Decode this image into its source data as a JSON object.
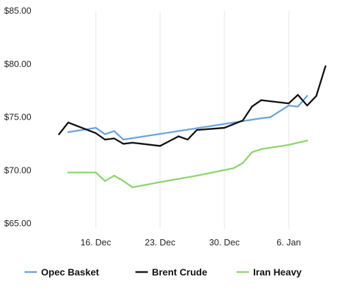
{
  "chart_data": {
    "type": "line",
    "title": "",
    "xlabel": "",
    "ylabel": "",
    "ylim": [
      65,
      85
    ],
    "y_ticks": [
      {
        "value": 85,
        "label": "$85.00"
      },
      {
        "value": 80,
        "label": "$80.00"
      },
      {
        "value": 75,
        "label": "$75.00"
      },
      {
        "value": 70,
        "label": "$70.00"
      },
      {
        "value": 65,
        "label": "$65.00"
      }
    ],
    "x_ticks": [
      {
        "date": "2019-12-16",
        "label": "16. Dec"
      },
      {
        "date": "2019-12-23",
        "label": "23. Dec"
      },
      {
        "date": "2019-12-30",
        "label": "30. Dec"
      },
      {
        "date": "2020-01-06",
        "label": "6. Jan"
      }
    ],
    "xlim": [
      "2019-12-12",
      "2020-01-10"
    ],
    "grid": {
      "vertical": true,
      "horizontal": false
    },
    "legend_position": "bottom",
    "series": [
      {
        "name": "Opec Basket",
        "color": "#6ba3dd",
        "points": [
          {
            "x": "2019-12-13",
            "y": 73.6
          },
          {
            "x": "2019-12-16",
            "y": 74.0
          },
          {
            "x": "2019-12-17",
            "y": 73.4
          },
          {
            "x": "2019-12-18",
            "y": 73.7
          },
          {
            "x": "2019-12-19",
            "y": 72.9
          },
          {
            "x": "2020-01-03",
            "y": 74.9
          },
          {
            "x": "2020-01-04",
            "y": 75.0
          },
          {
            "x": "2020-01-06",
            "y": 76.1
          },
          {
            "x": "2020-01-07",
            "y": 76.0
          },
          {
            "x": "2020-01-08",
            "y": 77.0
          }
        ]
      },
      {
        "name": "Brent Crude",
        "color": "#111111",
        "points": [
          {
            "x": "2019-12-12",
            "y": 73.4
          },
          {
            "x": "2019-12-13",
            "y": 74.5
          },
          {
            "x": "2019-12-16",
            "y": 73.5
          },
          {
            "x": "2019-12-17",
            "y": 72.9
          },
          {
            "x": "2019-12-18",
            "y": 73.0
          },
          {
            "x": "2019-12-19",
            "y": 72.5
          },
          {
            "x": "2019-12-20",
            "y": 72.6
          },
          {
            "x": "2019-12-23",
            "y": 72.3
          },
          {
            "x": "2019-12-25",
            "y": 73.2
          },
          {
            "x": "2019-12-26",
            "y": 72.9
          },
          {
            "x": "2019-12-27",
            "y": 73.8
          },
          {
            "x": "2019-12-30",
            "y": 74.0
          },
          {
            "x": "2020-01-01",
            "y": 74.7
          },
          {
            "x": "2020-01-02",
            "y": 76.0
          },
          {
            "x": "2020-01-03",
            "y": 76.6
          },
          {
            "x": "2020-01-06",
            "y": 76.3
          },
          {
            "x": "2020-01-07",
            "y": 77.1
          },
          {
            "x": "2020-01-08",
            "y": 76.1
          },
          {
            "x": "2020-01-09",
            "y": 77.0
          },
          {
            "x": "2020-01-10",
            "y": 79.8
          }
        ]
      },
      {
        "name": "Iran Heavy",
        "color": "#8fd46e",
        "points": [
          {
            "x": "2019-12-13",
            "y": 69.8
          },
          {
            "x": "2019-12-16",
            "y": 69.8
          },
          {
            "x": "2019-12-17",
            "y": 69.0
          },
          {
            "x": "2019-12-18",
            "y": 69.5
          },
          {
            "x": "2019-12-19",
            "y": 69.0
          },
          {
            "x": "2019-12-20",
            "y": 68.4
          },
          {
            "x": "2019-12-23",
            "y": 68.9
          },
          {
            "x": "2019-12-27",
            "y": 69.5
          },
          {
            "x": "2019-12-31",
            "y": 70.2
          },
          {
            "x": "2020-01-01",
            "y": 70.7
          },
          {
            "x": "2020-01-02",
            "y": 71.7
          },
          {
            "x": "2020-01-03",
            "y": 72.0
          },
          {
            "x": "2020-01-06",
            "y": 72.4
          },
          {
            "x": "2020-01-08",
            "y": 72.8
          }
        ]
      }
    ]
  }
}
